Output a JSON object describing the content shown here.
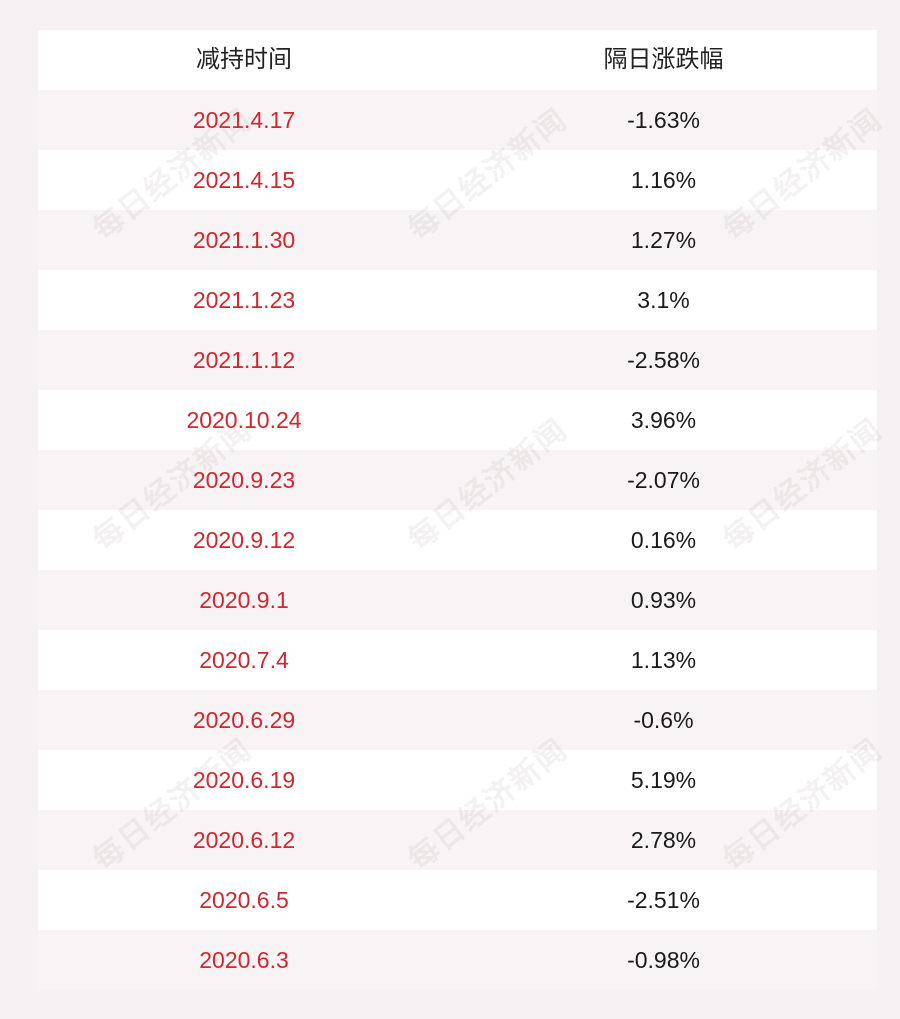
{
  "header": {
    "col1": "减持时间",
    "col2": "隔日涨跌幅"
  },
  "rows": [
    {
      "date": "2021.4.17",
      "change": "-1.63%"
    },
    {
      "date": "2021.4.15",
      "change": "1.16%"
    },
    {
      "date": "2021.1.30",
      "change": "1.27%"
    },
    {
      "date": "2021.1.23",
      "change": "3.1%"
    },
    {
      "date": "2021.1.12",
      "change": "-2.58%"
    },
    {
      "date": "2020.10.24",
      "change": "3.96%"
    },
    {
      "date": "2020.9.23",
      "change": "-2.07%"
    },
    {
      "date": "2020.9.12",
      "change": "0.16%"
    },
    {
      "date": "2020.9.1",
      "change": "0.93%"
    },
    {
      "date": "2020.7.4",
      "change": "1.13%"
    },
    {
      "date": "2020.6.29",
      "change": "-0.6%"
    },
    {
      "date": "2020.6.19",
      "change": "5.19%"
    },
    {
      "date": "2020.6.12",
      "change": "2.78%"
    },
    {
      "date": "2020.6.5",
      "change": "-2.51%"
    },
    {
      "date": "2020.6.3",
      "change": "-0.98%"
    }
  ],
  "watermark": "每日经济新闻",
  "colors": {
    "date_text": "#d0262d",
    "change_text": "#1a1a1a",
    "background": "#f6f2f3"
  }
}
